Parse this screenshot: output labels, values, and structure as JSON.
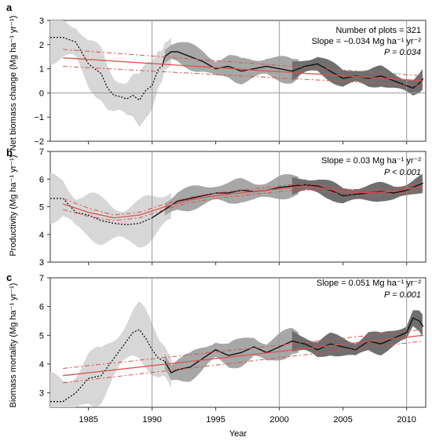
{
  "chart_data": [
    {
      "type": "line",
      "panel_label": "a",
      "ylabel": "Net biomass change (Mg ha⁻¹ yr⁻¹)",
      "ylim": [
        -2,
        3
      ],
      "yticks": [
        -2,
        -1,
        0,
        1,
        2,
        3
      ],
      "annotations": [
        "Number of plots = 321",
        "Slope = −0.034 Mg ha⁻¹ yr⁻²",
        "P = 0.034"
      ],
      "series": [
        {
          "style": "dotted",
          "x": [
            1982,
            1983,
            1984,
            1985,
            1986,
            1986.5,
            1987,
            1987.5,
            1988,
            1988.5,
            1989,
            1989.5,
            1990,
            1990.5,
            1990.8
          ],
          "y": [
            2.3,
            2.3,
            2.1,
            1.2,
            0.8,
            0.2,
            -0.1,
            -0.15,
            -0.25,
            -0.1,
            -0.3,
            0.1,
            0.3,
            1.0,
            1.1
          ]
        },
        {
          "style": "solid",
          "x": [
            1990.8,
            1991,
            1991.5,
            1992,
            1993,
            1994,
            1995,
            1996,
            1997,
            1998,
            1999,
            2000,
            2001,
            2002,
            2003,
            2004,
            2005,
            2006,
            2007,
            2008,
            2009,
            2010,
            2010.5,
            2011,
            2011.3
          ],
          "y": [
            1.1,
            1.5,
            1.7,
            1.7,
            1.5,
            1.3,
            1.0,
            1.1,
            0.9,
            1.0,
            1.1,
            1.0,
            0.9,
            1.1,
            1.2,
            0.9,
            0.6,
            0.7,
            0.6,
            0.7,
            0.5,
            0.3,
            0.2,
            0.4,
            0.6
          ]
        },
        {
          "style": "trend",
          "x": [
            1983,
            2011.3
          ],
          "y": [
            1.45,
            0.5
          ]
        },
        {
          "style": "ci",
          "x": [
            1983,
            2011.3
          ],
          "y": [
            1.8,
            0.7
          ]
        },
        {
          "style": "ci",
          "x": [
            1983,
            2011.3
          ],
          "y": [
            1.1,
            0.3
          ]
        }
      ]
    },
    {
      "type": "line",
      "panel_label": "b",
      "ylabel": "Productivity (Mg ha⁻¹ yr⁻¹)",
      "ylim": [
        3,
        7
      ],
      "yticks": [
        3,
        4,
        5,
        6,
        7
      ],
      "annotations": [
        "Slope = 0.03 Mg ha⁻¹ yr⁻²",
        "P < 0.001"
      ],
      "series": [
        {
          "style": "dotted",
          "x": [
            1982,
            1983,
            1984,
            1985,
            1986,
            1987,
            1988,
            1989,
            1990
          ],
          "y": [
            5.3,
            5.3,
            4.8,
            4.7,
            4.5,
            4.4,
            4.35,
            4.4,
            4.6
          ]
        },
        {
          "style": "solid",
          "x": [
            1990,
            1991,
            1992,
            1993,
            1994,
            1995,
            1996,
            1997,
            1998,
            1999,
            2000,
            2001,
            2002,
            2003,
            2004,
            2005,
            2006,
            2007,
            2008,
            2009,
            2010,
            2011,
            2011.3
          ],
          "y": [
            4.6,
            4.9,
            5.2,
            5.3,
            5.4,
            5.5,
            5.5,
            5.6,
            5.55,
            5.6,
            5.7,
            5.75,
            5.8,
            5.75,
            5.6,
            5.4,
            5.45,
            5.5,
            5.55,
            5.5,
            5.6,
            5.8,
            5.85
          ]
        },
        {
          "style": "trend",
          "x": [
            1983,
            1985,
            1987,
            1989,
            1991,
            1993,
            1995,
            1997,
            1999,
            2001,
            2003,
            2005,
            2007,
            2009,
            2011.3
          ],
          "y": [
            5.1,
            4.8,
            4.6,
            4.7,
            5.0,
            5.25,
            5.4,
            5.5,
            5.6,
            5.7,
            5.7,
            5.55,
            5.5,
            5.55,
            5.75
          ]
        },
        {
          "style": "ci",
          "x": [
            1983,
            1985,
            1987,
            1989,
            1991,
            1993,
            1995,
            1997,
            1999,
            2001,
            2003,
            2005,
            2007,
            2009,
            2011.3
          ],
          "y": [
            5.3,
            4.95,
            4.7,
            4.8,
            5.1,
            5.35,
            5.5,
            5.6,
            5.7,
            5.8,
            5.8,
            5.65,
            5.6,
            5.65,
            5.9
          ]
        },
        {
          "style": "ci",
          "x": [
            1983,
            1985,
            1987,
            1989,
            1991,
            1993,
            1995,
            1997,
            1999,
            2001,
            2003,
            2005,
            2007,
            2009,
            2011.3
          ],
          "y": [
            4.9,
            4.65,
            4.5,
            4.6,
            4.9,
            5.15,
            5.3,
            5.4,
            5.5,
            5.6,
            5.6,
            5.45,
            5.4,
            5.45,
            5.6
          ]
        }
      ]
    },
    {
      "type": "line",
      "panel_label": "c",
      "ylabel": "Biomass mortality (Mg ha⁻¹ yr⁻¹)",
      "ylim": [
        2.5,
        7
      ],
      "yticks": [
        3,
        4,
        5,
        6,
        7
      ],
      "annotations": [
        "Slope = 0.051 Mg ha⁻¹ yr⁻²",
        "P = 0.001"
      ],
      "series": [
        {
          "style": "dotted",
          "x": [
            1982,
            1983,
            1984,
            1985,
            1986,
            1987,
            1988,
            1988.5,
            1989,
            1989.5,
            1990,
            1990.5,
            1991
          ],
          "y": [
            2.7,
            2.7,
            3.0,
            3.5,
            3.6,
            4.2,
            4.8,
            5.1,
            5.2,
            4.9,
            4.5,
            4.2,
            4.1
          ]
        },
        {
          "style": "solid",
          "x": [
            1991,
            1991.5,
            1992,
            1993,
            1994,
            1995,
            1996,
            1997,
            1998,
            1999,
            2000,
            2001,
            2002,
            2003,
            2004,
            2005,
            2006,
            2007,
            2008,
            2009,
            2010,
            2010.5,
            2011,
            2011.3
          ],
          "y": [
            4.1,
            3.7,
            3.8,
            3.9,
            4.2,
            4.5,
            4.3,
            4.4,
            4.6,
            4.4,
            4.6,
            4.8,
            4.7,
            4.5,
            4.7,
            4.6,
            4.5,
            4.8,
            4.7,
            4.9,
            5.1,
            5.6,
            5.5,
            5.3
          ]
        },
        {
          "style": "trend",
          "x": [
            1983,
            2011.3
          ],
          "y": [
            3.6,
            5.0
          ]
        },
        {
          "style": "ci",
          "x": [
            1983,
            2011.3
          ],
          "y": [
            3.85,
            5.2
          ]
        },
        {
          "style": "ci",
          "x": [
            1983,
            2011.3
          ],
          "y": [
            3.35,
            4.8
          ]
        }
      ]
    }
  ],
  "xaxis": {
    "label": "Year",
    "xlim": [
      1982,
      2011.5
    ],
    "ticks": [
      1985,
      1990,
      1995,
      2000,
      2005,
      2010
    ],
    "vlines": [
      1990,
      2000,
      2010
    ]
  },
  "colors": {
    "trend": "#d9534f",
    "line": "#111111",
    "band_light": "#d7d7d7",
    "band_mid": "#a7a7a7",
    "band_dark": "#6f6f6f",
    "axis": "#333333"
  }
}
